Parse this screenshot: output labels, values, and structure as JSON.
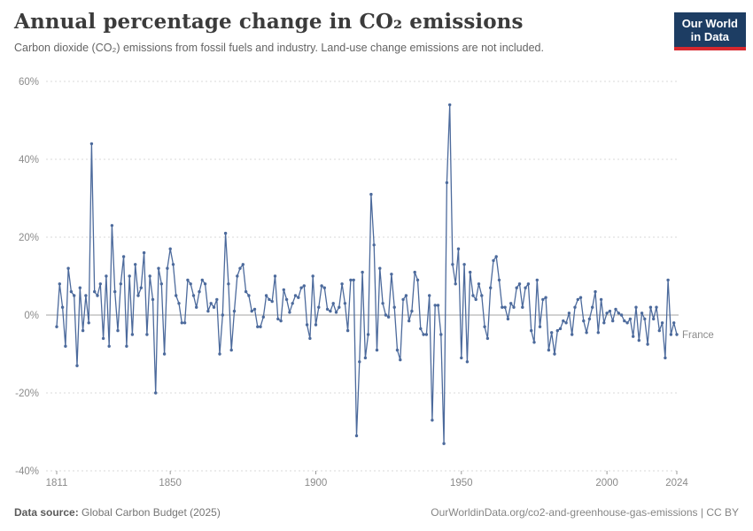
{
  "header": {
    "title": "Annual percentage change in CO₂ emissions",
    "subtitle": "Carbon dioxide (CO₂) emissions from fossil fuels and industry. Land-use change emissions are not included.",
    "logo": {
      "line1": "Our World",
      "line2": "in Data"
    }
  },
  "footer": {
    "source_label": "Data source:",
    "source_value": "Global Carbon Budget (2025)",
    "url": "OurWorldinData.org/co2-and-greenhouse-gas-emissions",
    "separator": "|",
    "license": "CC BY"
  },
  "theme": {
    "line_color": "#4c6a9c",
    "marker_color": "#4c6a9c",
    "entity_label_color": "#5b7db4",
    "grid_color": "#d8d8d8",
    "zero_line_color": "#a3a3a3",
    "tick_color": "#999999",
    "axis_text_color": "#8b8b8b",
    "logo_bg": "#1d3d63",
    "logo_red": "#d7282e"
  },
  "chart_data": {
    "type": "line",
    "title": "Annual percentage change in CO₂ emissions",
    "series_label": "France",
    "unit": "%",
    "x_range": [
      1811,
      2024
    ],
    "ylim": [
      -40,
      60
    ],
    "yticks": [
      60,
      40,
      20,
      0,
      -20,
      -40
    ],
    "ytick_labels": [
      "60%",
      "40%",
      "20%",
      "0%",
      "-20%",
      "-40%"
    ],
    "xticks": [
      1811,
      1850,
      1900,
      1950,
      2000,
      2024
    ],
    "xtick_labels": [
      "1811",
      "1850",
      "1900",
      "1950",
      "2000",
      "2024"
    ],
    "grid": "dashed-horizontal, solid zero line",
    "legend": "inline label at right end of line",
    "values_note": "annual percent change, one value per year 1811-2024, estimated from chart",
    "values": [
      -3,
      8,
      2,
      -8,
      12,
      6,
      5,
      -13,
      7,
      -4,
      5,
      -2,
      44,
      6,
      5,
      8,
      -6,
      10,
      -8,
      23,
      6,
      -4,
      8,
      15,
      -8,
      10,
      -5,
      13,
      5,
      7,
      16,
      -5,
      10,
      4,
      -20,
      12,
      8,
      -10,
      12,
      17,
      13,
      5,
      3,
      -2,
      -2,
      9,
      8,
      5,
      2,
      6,
      9,
      8,
      1,
      3,
      2,
      4,
      -10,
      0,
      21,
      8,
      -9,
      1,
      10,
      12,
      13,
      6,
      5,
      1,
      1.5,
      -3,
      -3,
      -0.5,
      5,
      4,
      3.5,
      10,
      -1,
      -1.5,
      6.5,
      4,
      0.7,
      3,
      5,
      4.5,
      7,
      7.5,
      -2.5,
      -6,
      10,
      -2.5,
      2,
      7.5,
      7,
      1.5,
      1,
      3,
      0.7,
      2,
      8,
      3,
      -4,
      9,
      9,
      -31,
      -12,
      11,
      -11,
      -5,
      31,
      18,
      -9,
      12,
      3,
      0,
      -0.5,
      10.5,
      2,
      -9,
      -11.5,
      4,
      5,
      -1.5,
      1,
      11,
      9,
      -3.5,
      -5,
      -5,
      5,
      -27,
      2.5,
      2.5,
      -5,
      -33,
      34,
      54,
      13,
      8,
      17,
      -11,
      13,
      -12,
      11,
      5,
      4,
      8,
      5,
      -3,
      -6,
      7,
      14,
      15,
      9,
      2,
      2,
      -1,
      3,
      2,
      7,
      8,
      2,
      7,
      8,
      -4,
      -7,
      9,
      -3,
      4,
      4.5,
      -9,
      -4.5,
      -10,
      -4,
      -3.5,
      -1.5,
      -2,
      0.5,
      -5,
      2,
      4,
      4.5,
      -1.5,
      -4.5,
      -1,
      2,
      6,
      -4.5,
      4,
      -2,
      0.5,
      1,
      -1.5,
      1.5,
      0.5,
      0,
      -1.5,
      -2,
      -1,
      -5.5,
      2,
      -6.5,
      0.5,
      -1,
      -7.5,
      2,
      -1,
      2,
      -4,
      -2,
      -11,
      9,
      -5,
      -2,
      -5
    ]
  }
}
